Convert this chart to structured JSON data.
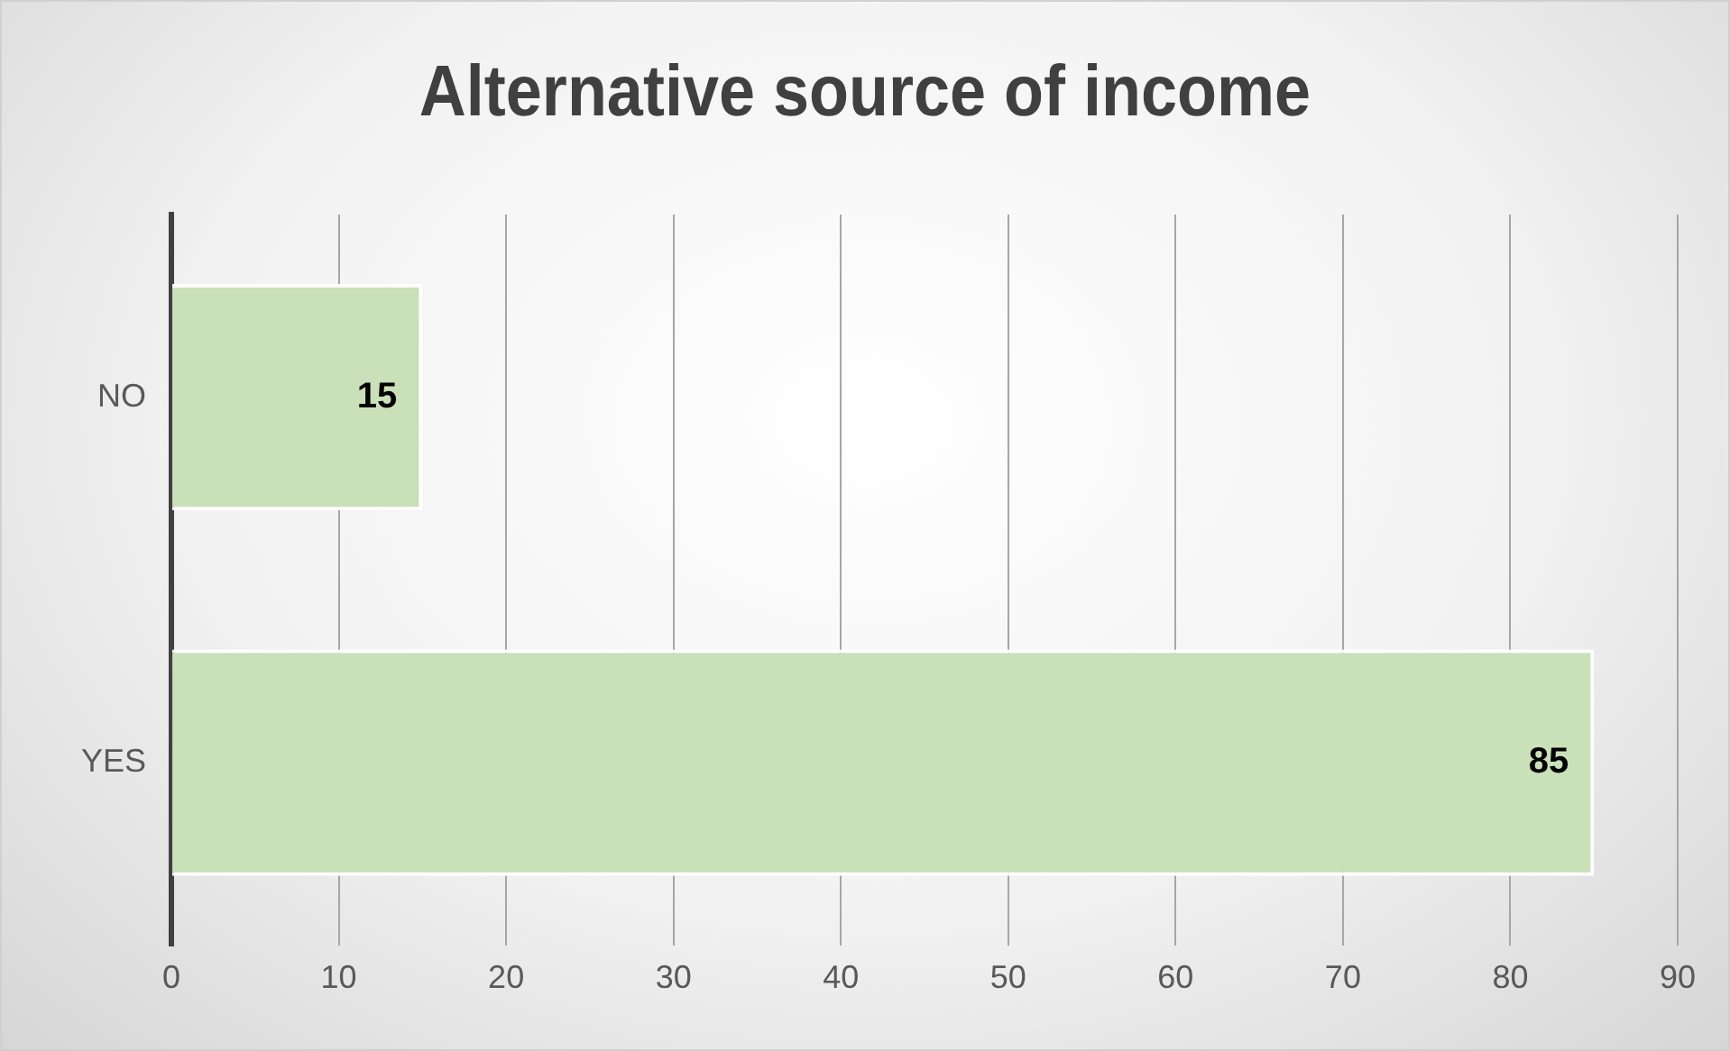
{
  "chart_data": {
    "type": "bar",
    "orientation": "horizontal",
    "title": "Alternative source of income",
    "categories": [
      "NO",
      "YES"
    ],
    "values": [
      15,
      85
    ],
    "color": "#c9e0b8",
    "xlim": [
      0,
      90
    ],
    "xticks": [
      0,
      10,
      20,
      30,
      40,
      50,
      60,
      70,
      80,
      90
    ],
    "grid": "x",
    "data_labels": true
  }
}
